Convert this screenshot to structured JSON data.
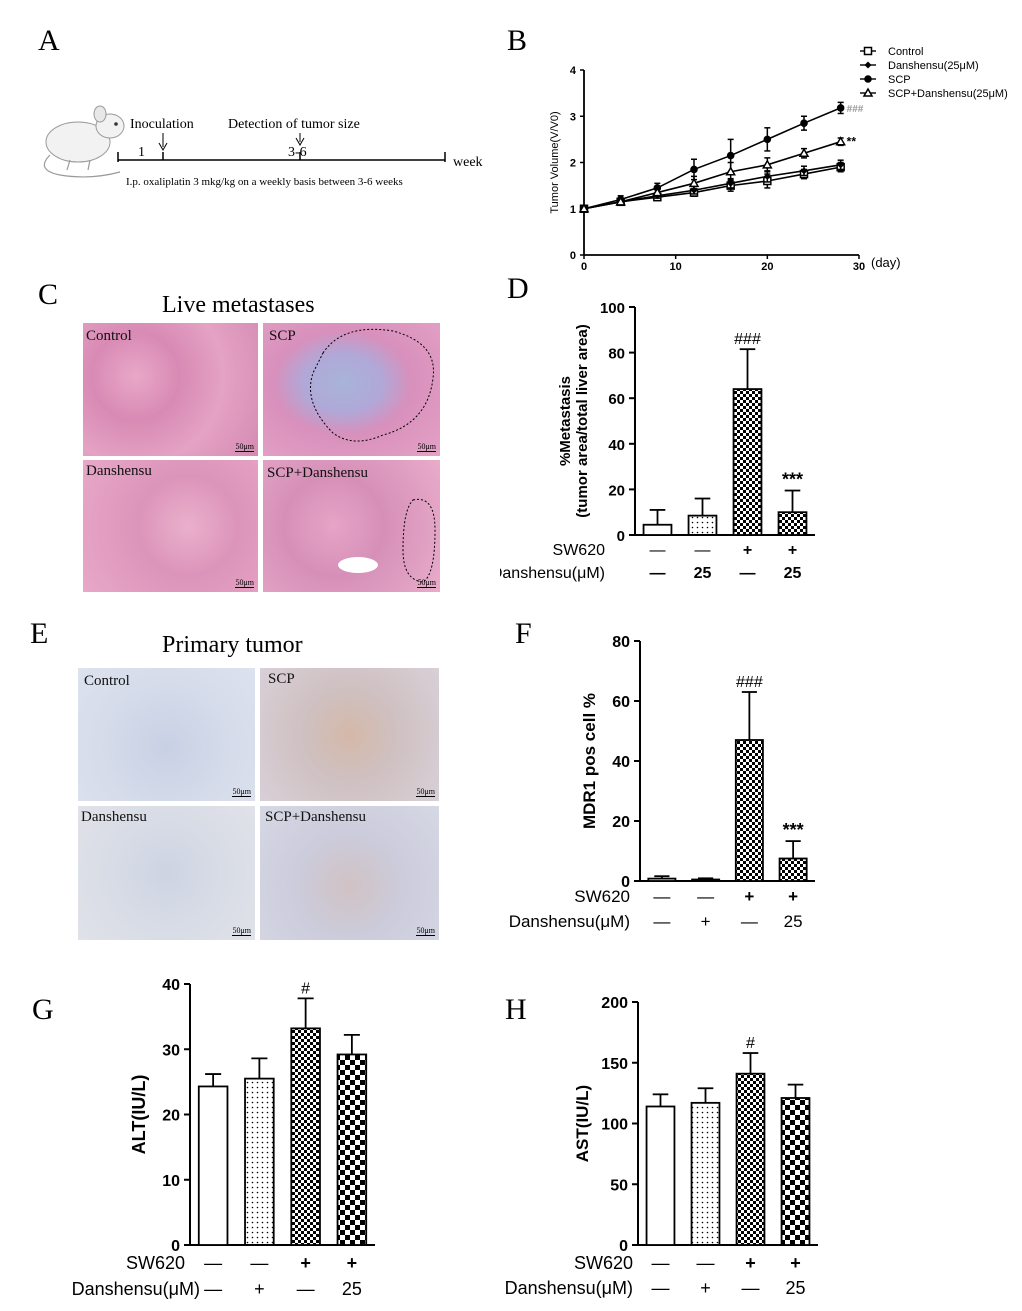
{
  "panels": {
    "A": "A",
    "B": "B",
    "C": "C",
    "D": "D",
    "E": "E",
    "F": "F",
    "G": "G",
    "H": "H"
  },
  "timeline": {
    "inoculation": "Inoculation",
    "detection": "Detection of tumor size",
    "start_num": "1",
    "range_num": "3-6",
    "unit": "week",
    "note": "I.p. oxaliplatin 3 mkg/kg on a weekly basis between 3-6 weeks"
  },
  "histology_C": {
    "title": "Live metastases",
    "labels": [
      "Control",
      "SCP",
      "Danshensu",
      "SCP+Danshensu"
    ],
    "scale_bar": "50μm"
  },
  "histology_E": {
    "title": "Primary tumor",
    "labels": [
      "Control",
      "SCP",
      "Danshensu",
      "SCP+Danshensu"
    ],
    "scale_bar": "50μm"
  },
  "chart_data": [
    {
      "id": "B",
      "type": "line",
      "ylabel": "Tumor Volume(V/V0)",
      "xlabel": "(day)",
      "x": [
        0,
        4,
        8,
        12,
        16,
        20,
        24,
        28
      ],
      "xlim": [
        0,
        30
      ],
      "ylim": [
        0,
        4
      ],
      "xticks": [
        0,
        10,
        20,
        30
      ],
      "yticks": [
        0,
        1,
        2,
        3,
        4
      ],
      "legend_position": "top-right",
      "series": [
        {
          "name": "Control",
          "marker": "square-open",
          "values": [
            1.0,
            1.15,
            1.25,
            1.35,
            1.5,
            1.6,
            1.75,
            1.9
          ],
          "err": [
            0.03,
            0.05,
            0.05,
            0.08,
            0.12,
            0.15,
            0.1,
            0.1
          ]
        },
        {
          "name": "Danshensu(25μM)",
          "marker": "diamond",
          "values": [
            1.0,
            1.15,
            1.28,
            1.4,
            1.55,
            1.7,
            1.82,
            1.95
          ],
          "err": [
            0.03,
            0.05,
            0.05,
            0.08,
            0.1,
            0.12,
            0.1,
            0.1
          ]
        },
        {
          "name": "SCP",
          "marker": "circle",
          "values": [
            1.0,
            1.2,
            1.45,
            1.85,
            2.15,
            2.5,
            2.85,
            3.18
          ],
          "err": [
            0.03,
            0.08,
            0.1,
            0.22,
            0.35,
            0.25,
            0.15,
            0.12
          ]
        },
        {
          "name": "SCP+Danshensu(25μM)",
          "marker": "triangle-open",
          "values": [
            1.0,
            1.15,
            1.35,
            1.55,
            1.8,
            1.95,
            2.2,
            2.45
          ],
          "err": [
            0.03,
            0.06,
            0.08,
            0.15,
            0.2,
            0.15,
            0.1,
            0.08
          ]
        }
      ],
      "annotations": [
        {
          "text": "###",
          "series": "SCP"
        },
        {
          "text": "**",
          "series": "SCP+Danshensu(25μM)"
        }
      ]
    },
    {
      "id": "D",
      "type": "bar",
      "ylabel": "%Metastasis\n(tumor area/total liver area)",
      "ylim": [
        0,
        100
      ],
      "yticks": [
        0,
        20,
        40,
        60,
        80,
        100
      ],
      "values": [
        4.5,
        8.5,
        64,
        10
      ],
      "err": [
        6.5,
        7.5,
        17.5,
        9.5
      ],
      "patterns": [
        "white",
        "dots",
        "checker",
        "checker"
      ],
      "annotations": [
        "",
        "",
        "###",
        "***"
      ],
      "row1_label": "SW620",
      "row1": [
        "—",
        "—",
        "+",
        "+"
      ],
      "row2_label": "Danshensu(μM)",
      "row2": [
        "—",
        "25",
        "—",
        "25"
      ]
    },
    {
      "id": "F",
      "type": "bar",
      "ylabel": "MDR1 pos cell %",
      "ylim": [
        0,
        80
      ],
      "yticks": [
        0,
        20,
        40,
        60,
        80
      ],
      "values": [
        0.8,
        0.5,
        47,
        7.5
      ],
      "err": [
        0.8,
        0.4,
        16,
        5.8
      ],
      "patterns": [
        "white",
        "dots",
        "checker",
        "checker"
      ],
      "annotations": [
        "",
        "",
        "###",
        "***"
      ],
      "row1_label": "SW620",
      "row1": [
        "—",
        "—",
        "+",
        "+"
      ],
      "row2_label": "Danshensu(μM)",
      "row2": [
        "—",
        "+",
        "—",
        "25"
      ]
    },
    {
      "id": "G",
      "type": "bar",
      "ylabel": "ALT(IU/L)",
      "ylim": [
        0,
        40
      ],
      "yticks": [
        0,
        10,
        20,
        30,
        40
      ],
      "values": [
        24.3,
        25.5,
        33.2,
        29.2
      ],
      "err": [
        1.9,
        3.1,
        4.6,
        3.0
      ],
      "patterns": [
        "white",
        "dots",
        "checker",
        "checker-large"
      ],
      "annotations": [
        "",
        "",
        "#",
        ""
      ],
      "row1_label": "SW620",
      "row1": [
        "—",
        "—",
        "+",
        "+"
      ],
      "row2_label": "Danshensu(μM)",
      "row2": [
        "—",
        "+",
        "—",
        "25"
      ]
    },
    {
      "id": "H",
      "type": "bar",
      "ylabel": "AST(IU/L)",
      "ylim": [
        0,
        200
      ],
      "yticks": [
        0,
        50,
        100,
        150,
        200
      ],
      "values": [
        114,
        117,
        141,
        121
      ],
      "err": [
        10,
        12,
        17,
        11
      ],
      "patterns": [
        "white",
        "dots",
        "checker",
        "checker-large"
      ],
      "annotations": [
        "",
        "",
        "#",
        ""
      ],
      "row1_label": "SW620",
      "row1": [
        "—",
        "—",
        "+",
        "+"
      ],
      "row2_label": "Danshensu(μM)",
      "row2": [
        "—",
        "+",
        "—",
        "25"
      ]
    }
  ]
}
